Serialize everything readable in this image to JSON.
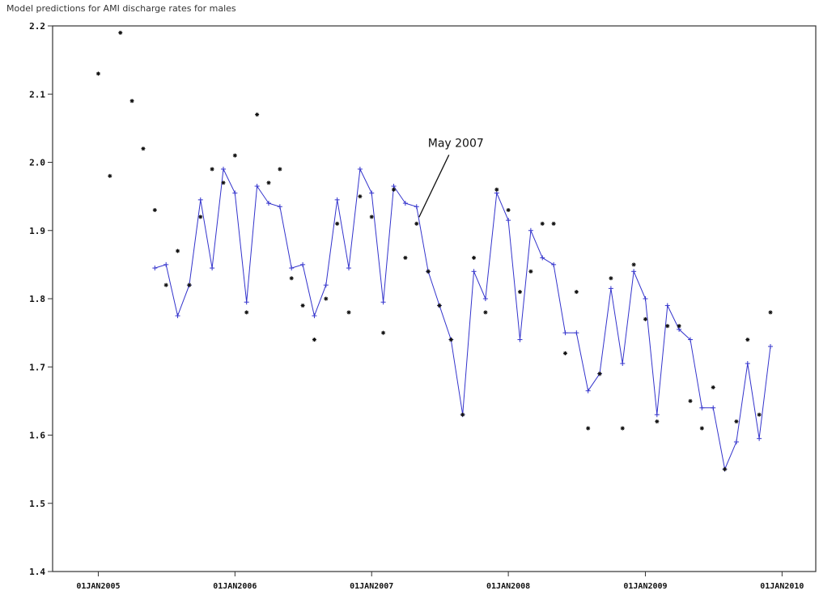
{
  "chart_data": {
    "type": "line",
    "title": "Model predictions for AMI discharge rates for males",
    "xlabel": "",
    "ylabel": "",
    "ylim": [
      1.4,
      2.2
    ],
    "xlim": [
      "2004-09-01",
      "2010-04-01"
    ],
    "y_ticks": [
      "1.4",
      "1.5",
      "1.6",
      "1.7",
      "1.8",
      "1.9",
      "2.0",
      "2.1",
      "2.2"
    ],
    "x_ticks": [
      {
        "date": "2005-01-01",
        "label": "01JAN2005"
      },
      {
        "date": "2006-01-01",
        "label": "01JAN2006"
      },
      {
        "date": "2007-01-01",
        "label": "01JAN2007"
      },
      {
        "date": "2008-01-01",
        "label": "01JAN2008"
      },
      {
        "date": "2009-01-01",
        "label": "01JAN2009"
      },
      {
        "date": "2010-01-01",
        "label": "01JAN2010"
      }
    ],
    "grid": false,
    "legend": "none",
    "colors": {
      "observed": "#111111",
      "predicted": "#3333cc",
      "axis": "#333333"
    },
    "annotation": {
      "text": "May 2007",
      "date": "2007-05-01",
      "value": 1.91
    },
    "series": [
      {
        "kind": "observed",
        "marker": "star",
        "points": [
          [
            "2005-01-01",
            2.13
          ],
          [
            "2005-02-01",
            1.98
          ],
          [
            "2005-03-01",
            2.19
          ],
          [
            "2005-04-01",
            2.09
          ],
          [
            "2005-05-01",
            2.02
          ],
          [
            "2005-06-01",
            1.93
          ],
          [
            "2005-07-01",
            1.82
          ],
          [
            "2005-08-01",
            1.87
          ],
          [
            "2005-09-01",
            1.82
          ],
          [
            "2005-10-01",
            1.92
          ],
          [
            "2005-11-01",
            1.99
          ],
          [
            "2005-12-01",
            1.97
          ],
          [
            "2006-01-01",
            2.01
          ],
          [
            "2006-02-01",
            1.78
          ],
          [
            "2006-03-01",
            2.07
          ],
          [
            "2006-04-01",
            1.97
          ],
          [
            "2006-05-01",
            1.99
          ],
          [
            "2006-06-01",
            1.83
          ],
          [
            "2006-07-01",
            1.79
          ],
          [
            "2006-08-01",
            1.74
          ],
          [
            "2006-09-01",
            1.8
          ],
          [
            "2006-10-01",
            1.91
          ],
          [
            "2006-11-01",
            1.78
          ],
          [
            "2006-12-01",
            1.95
          ],
          [
            "2007-01-01",
            1.92
          ],
          [
            "2007-02-01",
            1.75
          ],
          [
            "2007-03-01",
            1.96
          ],
          [
            "2007-04-01",
            1.86
          ],
          [
            "2007-05-01",
            1.91
          ],
          [
            "2007-06-01",
            1.84
          ],
          [
            "2007-07-01",
            1.79
          ],
          [
            "2007-08-01",
            1.74
          ],
          [
            "2007-09-01",
            1.63
          ],
          [
            "2007-10-01",
            1.86
          ],
          [
            "2007-11-01",
            1.78
          ],
          [
            "2007-12-01",
            1.96
          ],
          [
            "2008-01-01",
            1.93
          ],
          [
            "2008-02-01",
            1.81
          ],
          [
            "2008-03-01",
            1.84
          ],
          [
            "2008-04-01",
            1.91
          ],
          [
            "2008-05-01",
            1.91
          ],
          [
            "2008-06-01",
            1.72
          ],
          [
            "2008-07-01",
            1.81
          ],
          [
            "2008-08-01",
            1.61
          ],
          [
            "2008-09-01",
            1.69
          ],
          [
            "2008-10-01",
            1.83
          ],
          [
            "2008-11-01",
            1.61
          ],
          [
            "2008-12-01",
            1.85
          ],
          [
            "2009-01-01",
            1.77
          ],
          [
            "2009-02-01",
            1.62
          ],
          [
            "2009-03-01",
            1.76
          ],
          [
            "2009-04-01",
            1.76
          ],
          [
            "2009-05-01",
            1.65
          ],
          [
            "2009-06-01",
            1.61
          ],
          [
            "2009-07-01",
            1.67
          ],
          [
            "2009-08-01",
            1.55
          ],
          [
            "2009-09-01",
            1.62
          ],
          [
            "2009-10-01",
            1.74
          ],
          [
            "2009-11-01",
            1.63
          ],
          [
            "2009-12-01",
            1.78
          ]
        ]
      },
      {
        "kind": "predicted",
        "marker": "plus",
        "points": [
          [
            "2005-06-01",
            1.845
          ],
          [
            "2005-07-01",
            1.85
          ],
          [
            "2005-08-01",
            1.775
          ],
          [
            "2005-09-01",
            1.82
          ],
          [
            "2005-10-01",
            1.945
          ],
          [
            "2005-11-01",
            1.845
          ],
          [
            "2005-12-01",
            1.99
          ],
          [
            "2006-01-01",
            1.955
          ],
          [
            "2006-02-01",
            1.795
          ],
          [
            "2006-03-01",
            1.965
          ],
          [
            "2006-04-01",
            1.94
          ],
          [
            "2006-05-01",
            1.935
          ],
          [
            "2006-06-01",
            1.845
          ],
          [
            "2006-07-01",
            1.85
          ],
          [
            "2006-08-01",
            1.775
          ],
          [
            "2006-09-01",
            1.82
          ],
          [
            "2006-10-01",
            1.945
          ],
          [
            "2006-11-01",
            1.845
          ],
          [
            "2006-12-01",
            1.99
          ],
          [
            "2007-01-01",
            1.955
          ],
          [
            "2007-02-01",
            1.795
          ],
          [
            "2007-03-01",
            1.965
          ],
          [
            "2007-04-01",
            1.94
          ],
          [
            "2007-05-01",
            1.935
          ],
          [
            "2007-06-01",
            1.84
          ],
          [
            "2007-07-01",
            1.79
          ],
          [
            "2007-08-01",
            1.74
          ],
          [
            "2007-09-01",
            1.63
          ],
          [
            "2007-10-01",
            1.84
          ],
          [
            "2007-11-01",
            1.8
          ],
          [
            "2007-12-01",
            1.955
          ],
          [
            "2008-01-01",
            1.915
          ],
          [
            "2008-02-01",
            1.74
          ],
          [
            "2008-03-01",
            1.9
          ],
          [
            "2008-04-01",
            1.86
          ],
          [
            "2008-05-01",
            1.85
          ],
          [
            "2008-06-01",
            1.75
          ],
          [
            "2008-07-01",
            1.75
          ],
          [
            "2008-08-01",
            1.665
          ],
          [
            "2008-09-01",
            1.69
          ],
          [
            "2008-10-01",
            1.815
          ],
          [
            "2008-11-01",
            1.705
          ],
          [
            "2008-12-01",
            1.84
          ],
          [
            "2009-01-01",
            1.8
          ],
          [
            "2009-02-01",
            1.63
          ],
          [
            "2009-03-01",
            1.79
          ],
          [
            "2009-04-01",
            1.755
          ],
          [
            "2009-05-01",
            1.74
          ],
          [
            "2009-06-01",
            1.64
          ],
          [
            "2009-07-01",
            1.64
          ],
          [
            "2009-08-01",
            1.55
          ],
          [
            "2009-09-01",
            1.59
          ],
          [
            "2009-10-01",
            1.705
          ],
          [
            "2009-11-01",
            1.595
          ],
          [
            "2009-12-01",
            1.73
          ]
        ]
      }
    ]
  }
}
